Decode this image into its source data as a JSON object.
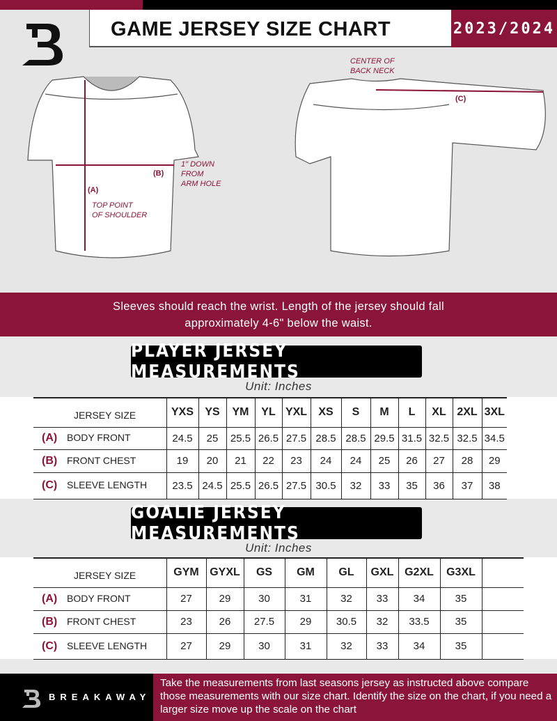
{
  "header": {
    "title": "GAME JERSEY SIZE CHART",
    "season": "2023/2024"
  },
  "diagram": {
    "center_back_neck": "CENTER OF\nBACK NECK",
    "label_a": "(A)",
    "label_b": "(B)",
    "label_c": "(C)",
    "top_point": "TOP POINT\nOF SHOULDER",
    "down_from_arm": "1\" DOWN\nFROM\nARM HOLE"
  },
  "banner": {
    "line1": "Sleeves should reach the wrist. Length of the jersey should fall",
    "line2": "approximately 4-6\" below the waist."
  },
  "player": {
    "title": "PLAYER JERSEY MEASUREMENTS",
    "unit": "Unit: Inches",
    "header_label": "JERSEY SIZE",
    "sizes": [
      "YXS",
      "YS",
      "YM",
      "YL",
      "YXL",
      "XS",
      "S",
      "M",
      "L",
      "XL",
      "2XL",
      "3XL"
    ],
    "rows": [
      {
        "letter": "(A)",
        "label": "BODY FRONT",
        "values": [
          "24.5",
          "25",
          "25.5",
          "26.5",
          "27.5",
          "28.5",
          "28.5",
          "29.5",
          "31.5",
          "32.5",
          "32.5",
          "34.5"
        ]
      },
      {
        "letter": "(B)",
        "label": "FRONT CHEST",
        "values": [
          "19",
          "20",
          "21",
          "22",
          "23",
          "24",
          "24",
          "25",
          "26",
          "27",
          "28",
          "29"
        ]
      },
      {
        "letter": "(C)",
        "label": "SLEEVE LENGTH",
        "values": [
          "23.5",
          "24.5",
          "25.5",
          "26.5",
          "27.5",
          "30.5",
          "32",
          "33",
          "35",
          "36",
          "37",
          "38"
        ]
      }
    ]
  },
  "goalie": {
    "title": "GOALIE JERSEY MEASUREMENTS",
    "unit": "Unit: Inches",
    "header_label": "JERSEY SIZE",
    "sizes": [
      "GYM",
      "GYXL",
      "GS",
      "GM",
      "GL",
      "GXL",
      "G2XL",
      "G3XL",
      ""
    ],
    "rows": [
      {
        "letter": "(A)",
        "label": "BODY FRONT",
        "values": [
          "27",
          "29",
          "30",
          "31",
          "32",
          "33",
          "34",
          "35",
          ""
        ]
      },
      {
        "letter": "(B)",
        "label": "FRONT CHEST",
        "values": [
          "23",
          "26",
          "27.5",
          "29",
          "30.5",
          "32",
          "33.5",
          "35",
          ""
        ]
      },
      {
        "letter": "(C)",
        "label": "SLEEVE LENGTH",
        "values": [
          "27",
          "29",
          "30",
          "31",
          "32",
          "33",
          "34",
          "35",
          ""
        ]
      }
    ]
  },
  "footer": {
    "brand": "BREAKAWAY",
    "text": "Take the measurements from last seasons jersey as instructed above compare those measurements  with our size chart. Identify the size on the chart, if you need a larger size move up the scale on the chart"
  },
  "colors": {
    "accent": "#8a1538",
    "dark": "#000000",
    "background": "#e9e9ea"
  }
}
